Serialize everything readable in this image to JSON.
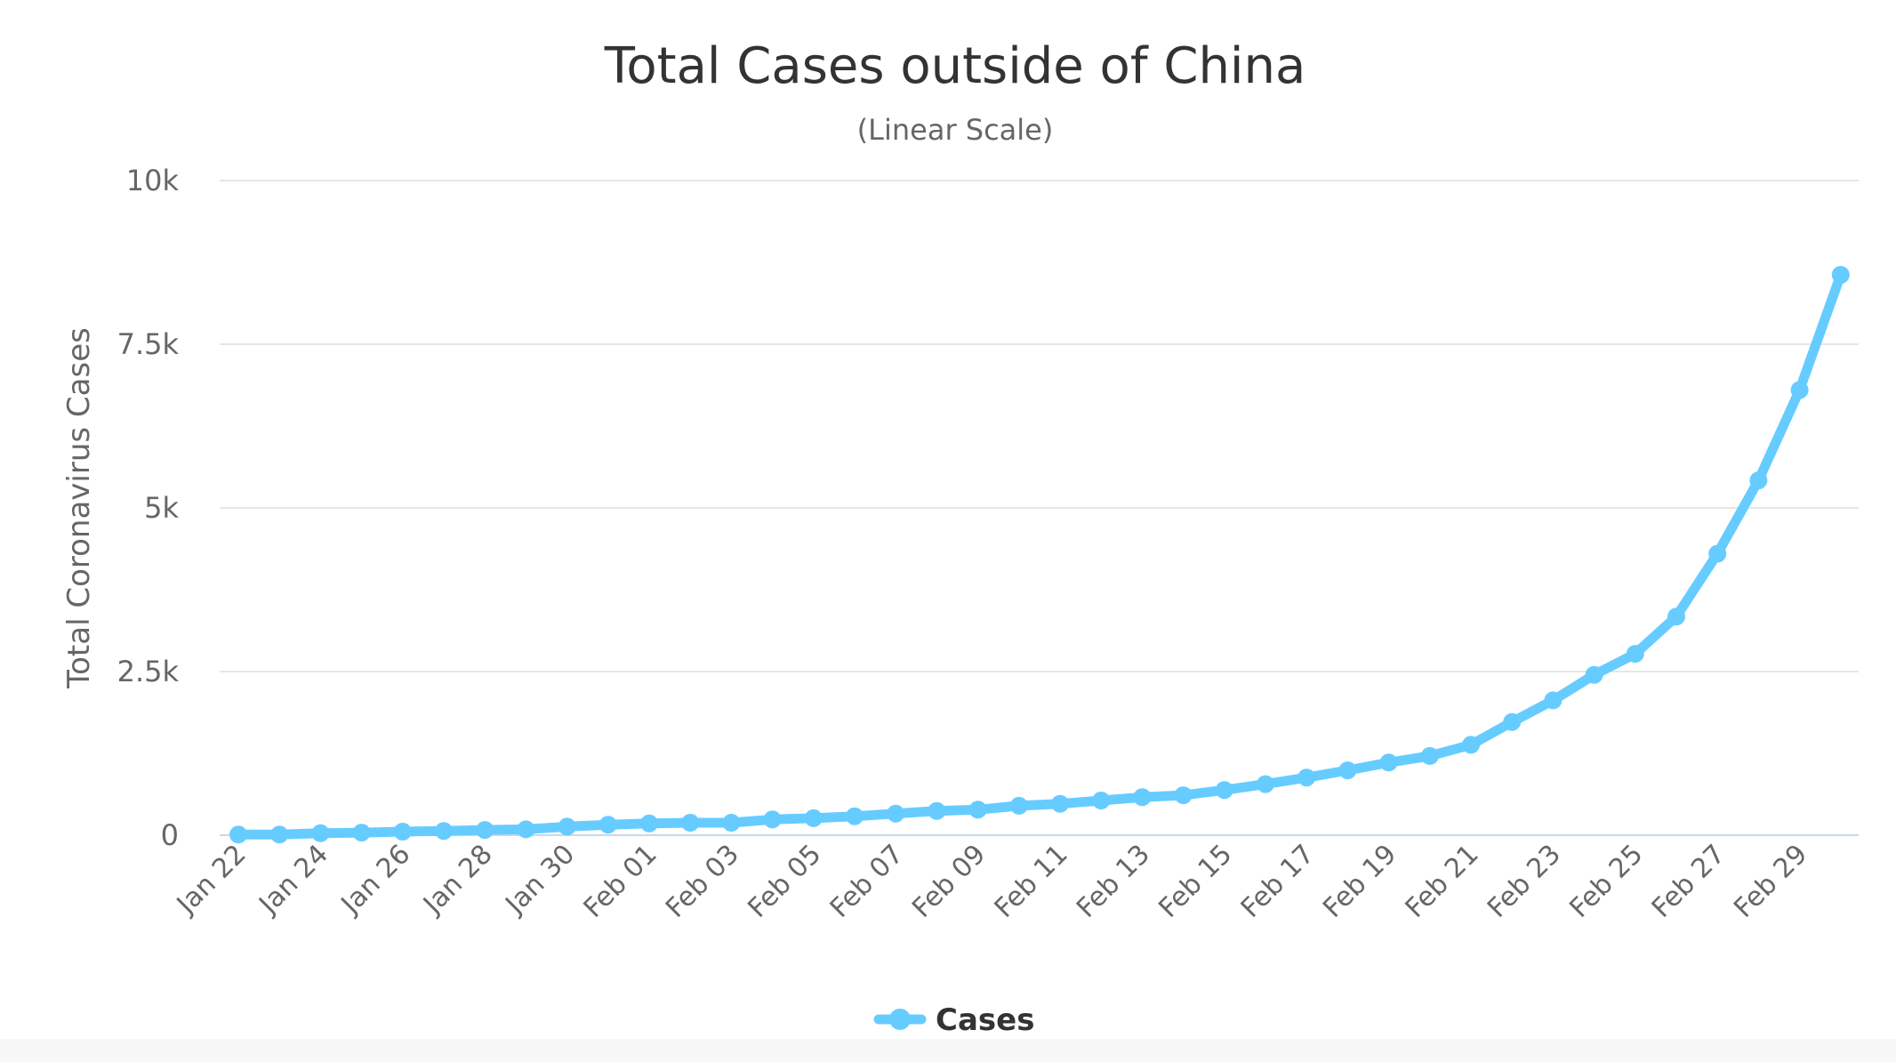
{
  "chart_data": {
    "type": "line",
    "title": "Total Cases outside of China",
    "subtitle": "(Linear Scale)",
    "xlabel": "",
    "ylabel": "Total Coronavirus Cases",
    "ylim": [
      0,
      10000
    ],
    "y_ticks": [
      {
        "value": 0,
        "label": "0"
      },
      {
        "value": 2500,
        "label": "2.5k"
      },
      {
        "value": 5000,
        "label": "5k"
      },
      {
        "value": 7500,
        "label": "7.5k"
      },
      {
        "value": 10000,
        "label": "10k"
      }
    ],
    "x_tick_labels": [
      "Jan 22",
      "Jan 24",
      "Jan 26",
      "Jan 28",
      "Jan 30",
      "Feb 01",
      "Feb 03",
      "Feb 05",
      "Feb 07",
      "Feb 09",
      "Feb 11",
      "Feb 13",
      "Feb 15",
      "Feb 17",
      "Feb 19",
      "Feb 21",
      "Feb 23",
      "Feb 25",
      "Feb 27",
      "Feb 29"
    ],
    "grid": true,
    "legend_position": "bottom-center",
    "series": [
      {
        "name": "Cases",
        "color": "#66ccff",
        "x": [
          "Jan 22",
          "Jan 23",
          "Jan 24",
          "Jan 25",
          "Jan 26",
          "Jan 27",
          "Jan 28",
          "Jan 29",
          "Jan 30",
          "Jan 31",
          "Feb 01",
          "Feb 02",
          "Feb 03",
          "Feb 04",
          "Feb 05",
          "Feb 06",
          "Feb 07",
          "Feb 08",
          "Feb 09",
          "Feb 10",
          "Feb 11",
          "Feb 12",
          "Feb 13",
          "Feb 14",
          "Feb 15",
          "Feb 16",
          "Feb 17",
          "Feb 18",
          "Feb 19",
          "Feb 20",
          "Feb 21",
          "Feb 22",
          "Feb 23",
          "Feb 24",
          "Feb 25",
          "Feb 26",
          "Feb 27",
          "Feb 28",
          "Feb 29",
          "Mar 01"
        ],
        "values": [
          10,
          10,
          30,
          40,
          55,
          65,
          80,
          90,
          130,
          160,
          180,
          190,
          190,
          240,
          260,
          290,
          330,
          370,
          390,
          450,
          480,
          530,
          580,
          610,
          690,
          780,
          880,
          990,
          1110,
          1210,
          1380,
          1730,
          2060,
          2450,
          2770,
          3340,
          4300,
          5420,
          6800,
          8560
        ]
      }
    ]
  }
}
